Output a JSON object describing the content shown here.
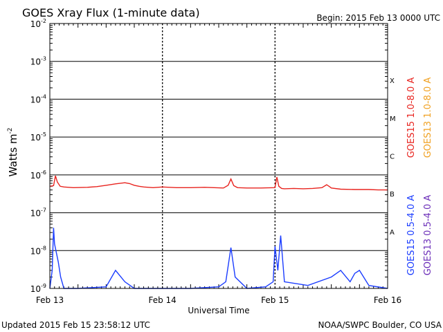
{
  "header": {
    "title": "GOES Xray Flux (1-minute data)",
    "begin": "Begin:  2015 Feb 13 0000 UTC"
  },
  "footer": {
    "updated": "Updated 2015 Feb 15 23:58:12 UTC",
    "credit": "NOAA/SWPC Boulder, CO USA"
  },
  "chart_data": {
    "type": "line",
    "title": "GOES Xray Flux (1-minute data)",
    "xlabel": "Universal Time",
    "ylabel": "Watts m",
    "ylabel_superscript": "-2",
    "y_scale": "log",
    "ylim": [
      1e-09,
      0.01
    ],
    "y_ticks": [
      {
        "base": "10",
        "exp": "-2"
      },
      {
        "base": "10",
        "exp": "-3"
      },
      {
        "base": "10",
        "exp": "-4"
      },
      {
        "base": "10",
        "exp": "-5"
      },
      {
        "base": "10",
        "exp": "-6"
      },
      {
        "base": "10",
        "exp": "-7"
      },
      {
        "base": "10",
        "exp": "-8"
      },
      {
        "base": "10",
        "exp": "-9"
      }
    ],
    "x_ticks": [
      "Feb 13",
      "Feb 14",
      "Feb 15",
      "Feb 16"
    ],
    "xlim_hours": [
      0,
      72
    ],
    "flare_classes": [
      {
        "label": "X",
        "flux": 0.0001
      },
      {
        "label": "M",
        "flux": 1e-05
      },
      {
        "label": "C",
        "flux": 1e-06
      },
      {
        "label": "B",
        "flux": 1e-07
      },
      {
        "label": "A",
        "flux": 1e-08
      }
    ],
    "legend_right": [
      {
        "name": "GOES15 1.0-8.0 A",
        "color": "#e8231e"
      },
      {
        "name": "GOES13 1.0-8.0 A",
        "color": "#f0a020"
      },
      {
        "name": "GOES15 0.5-4.0 A",
        "color": "#1a3cff"
      },
      {
        "name": "GOES13 0.5-4.0 A",
        "color": "#6a2cb8"
      }
    ],
    "series": [
      {
        "name": "GOES15 1.0-8.0 A",
        "color": "#e8231e",
        "x_hours": [
          0,
          0.8,
          1.2,
          1.6,
          2.2,
          3,
          5,
          8,
          10,
          12,
          14,
          16,
          17,
          18,
          19,
          20,
          22,
          24,
          27,
          30,
          33,
          35,
          37,
          38,
          38.6,
          39.2,
          40,
          42,
          45,
          48,
          48.4,
          48.8,
          49.4,
          50,
          52,
          54,
          56,
          58,
          59,
          59.6,
          60,
          62,
          65,
          68,
          70,
          72
        ],
        "y": [
          5e-07,
          5.2e-07,
          9.5e-07,
          6.5e-07,
          5e-07,
          4.8e-07,
          4.6e-07,
          4.7e-07,
          4.9e-07,
          5.3e-07,
          5.8e-07,
          6.2e-07,
          5.9e-07,
          5.3e-07,
          5e-07,
          4.8e-07,
          4.6e-07,
          4.8e-07,
          4.6e-07,
          4.6e-07,
          4.7e-07,
          4.6e-07,
          4.5e-07,
          5.3e-07,
          7.8e-07,
          5.2e-07,
          4.6e-07,
          4.5e-07,
          4.5e-07,
          4.6e-07,
          8.8e-07,
          5e-07,
          4.4e-07,
          4.3e-07,
          4.4e-07,
          4.3e-07,
          4.4e-07,
          4.6e-07,
          5.5e-07,
          4.9e-07,
          4.5e-07,
          4.2e-07,
          4.1e-07,
          4.1e-07,
          4e-07,
          4e-07
        ]
      },
      {
        "name": "GOES15 0.5-4.0 A",
        "color": "#1a3cff",
        "x_hours": [
          0,
          0.5,
          0.8,
          1.0,
          1.3,
          1.8,
          2.3,
          3,
          6,
          12,
          14,
          16,
          18,
          24,
          30,
          36,
          37.5,
          38.6,
          39.5,
          42,
          46,
          47.6,
          48,
          48.6,
          49.2,
          50,
          55,
          60,
          62,
          64,
          65,
          66,
          68,
          72
        ],
        "y": [
          1e-09,
          3e-09,
          4e-08,
          1.5e-08,
          1e-08,
          5e-09,
          2e-09,
          1e-09,
          1e-09,
          1.1e-09,
          3e-09,
          1.5e-09,
          1e-09,
          1e-09,
          1e-09,
          1.1e-09,
          1.5e-09,
          1.2e-08,
          2e-09,
          1e-09,
          1.1e-09,
          1.5e-09,
          1.3e-08,
          3e-09,
          2.5e-08,
          1.5e-09,
          1.2e-09,
          2e-09,
          3e-09,
          1.5e-09,
          2.5e-09,
          3e-09,
          1.2e-09,
          1e-09
        ]
      }
    ]
  }
}
